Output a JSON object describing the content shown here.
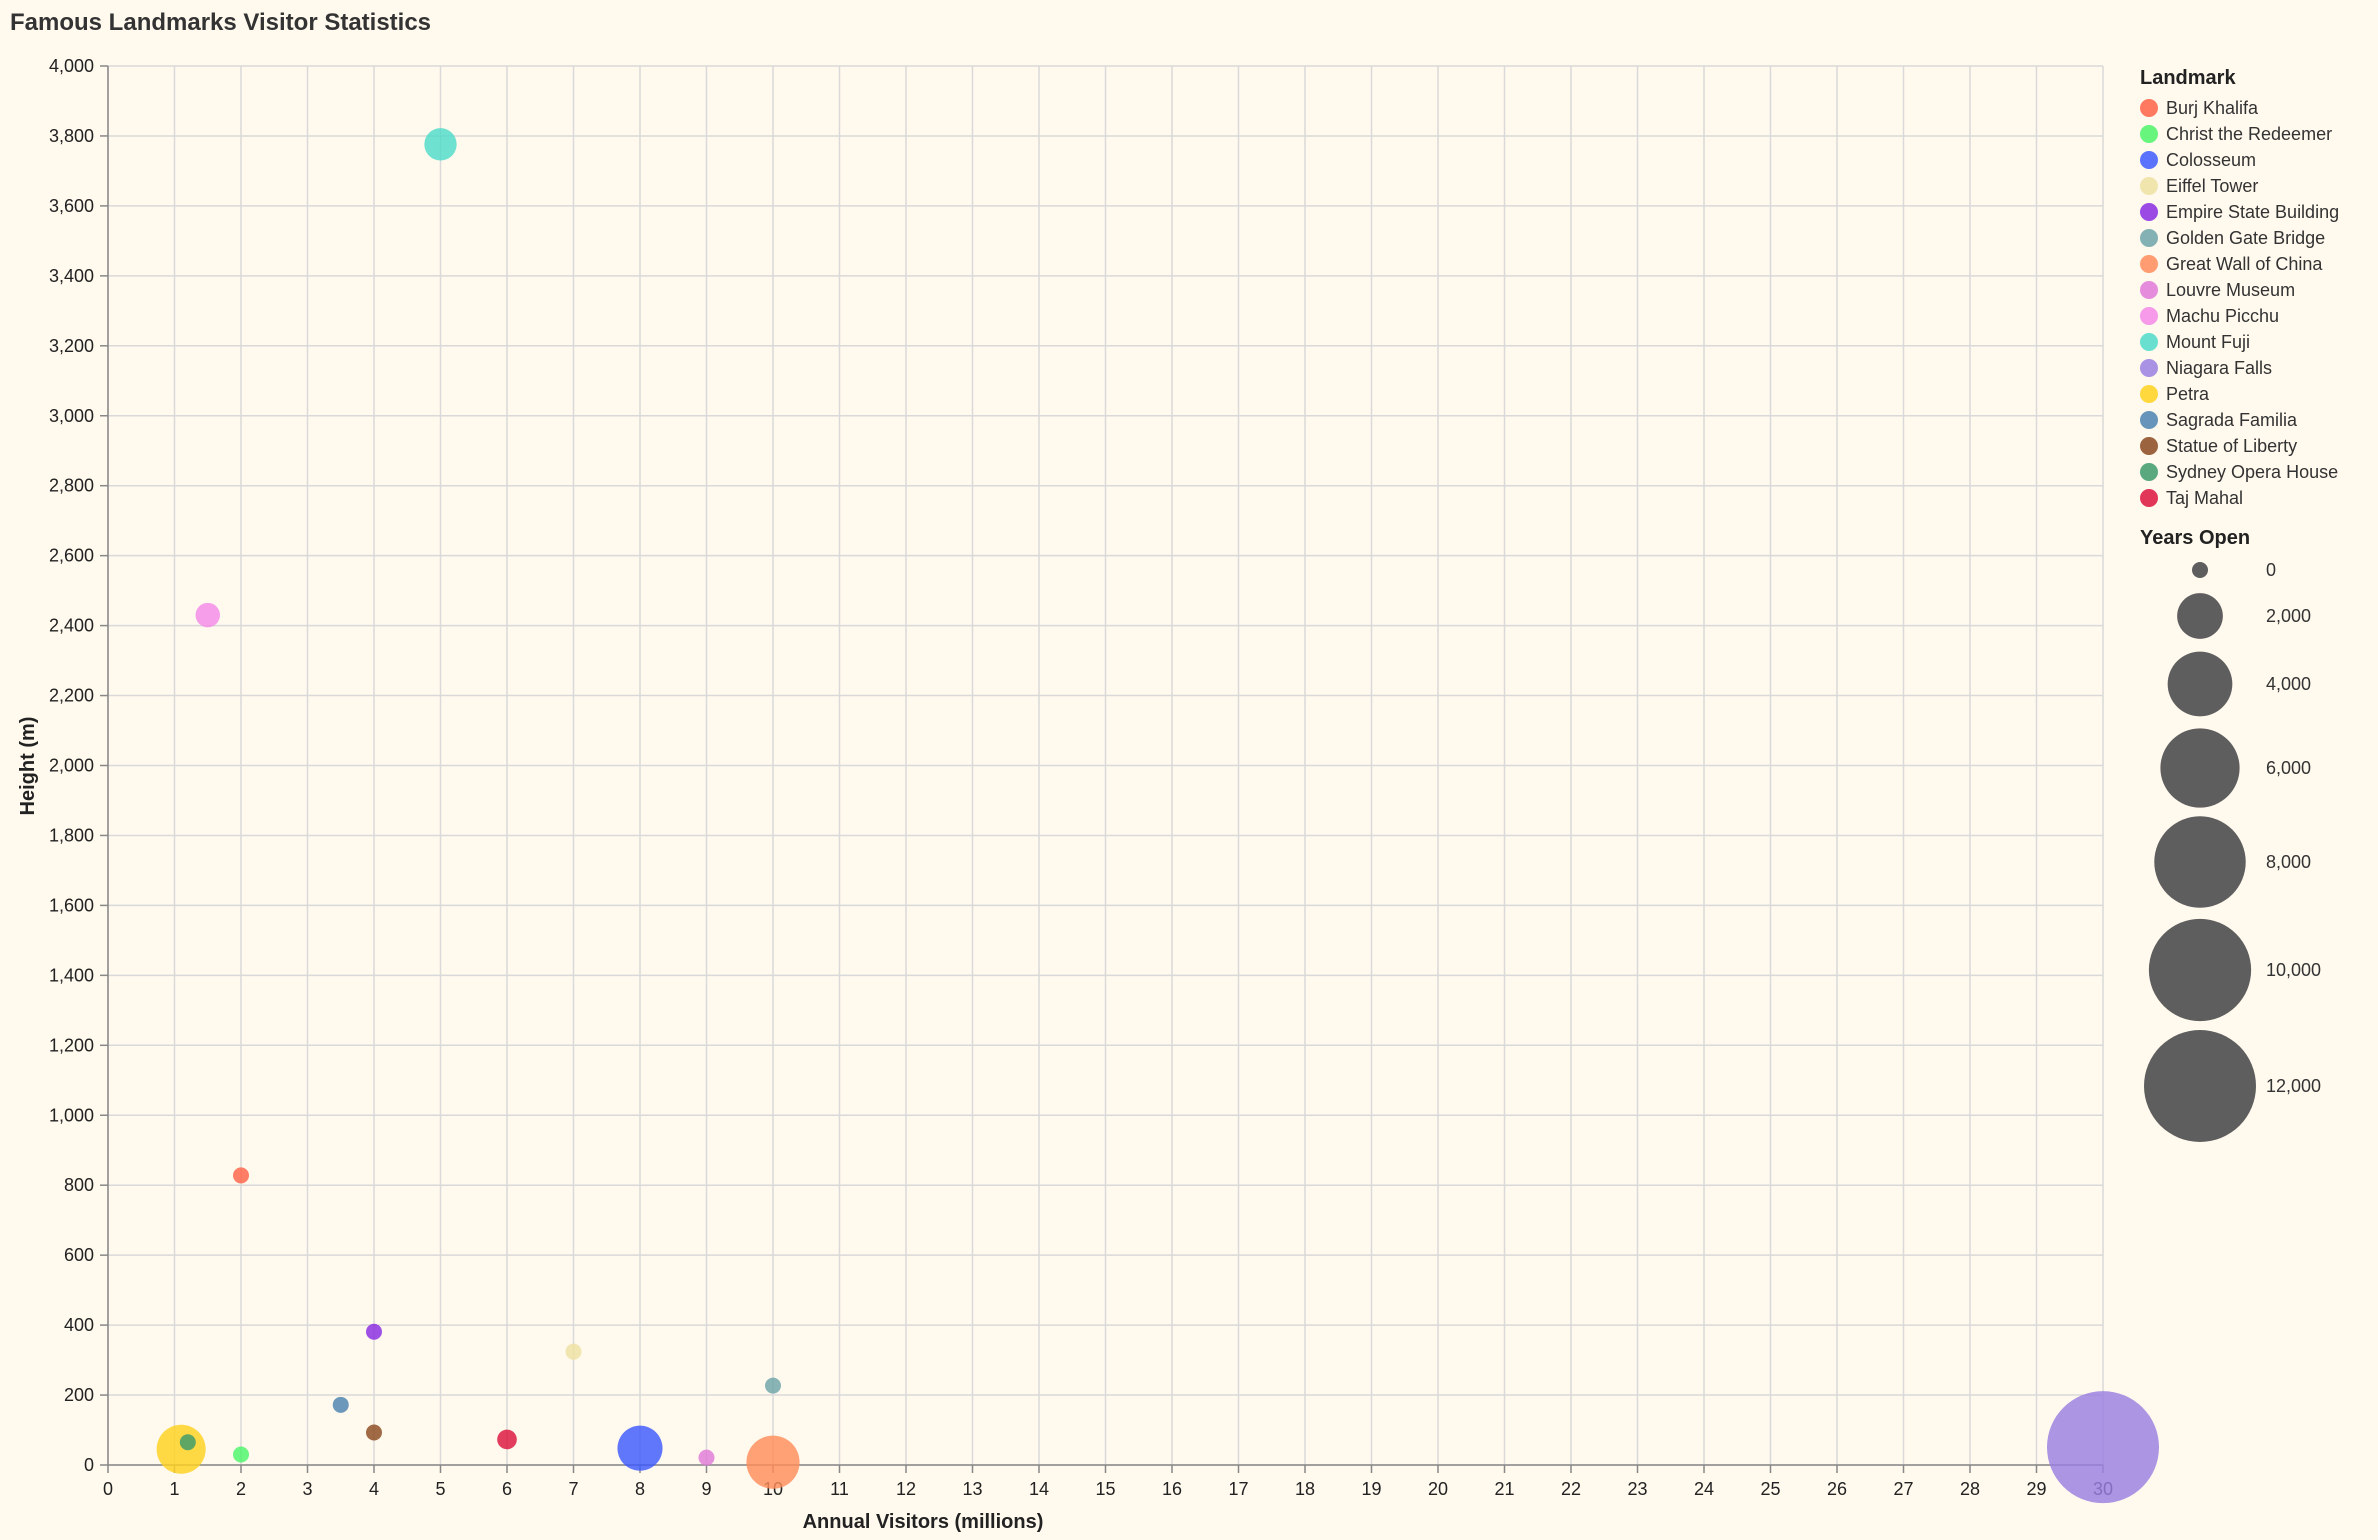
{
  "chart_data": {
    "type": "scatter",
    "title": "Famous Landmarks Visitor Statistics",
    "xlabel": "Annual Visitors (millions)",
    "ylabel": "Height (m)",
    "xlim": [
      0,
      30
    ],
    "ylim": [
      0,
      4000
    ],
    "x_ticks": [
      0,
      1,
      2,
      3,
      4,
      5,
      6,
      7,
      8,
      9,
      10,
      11,
      12,
      13,
      14,
      15,
      16,
      17,
      18,
      19,
      20,
      21,
      22,
      23,
      24,
      25,
      26,
      27,
      28,
      29,
      30
    ],
    "y_ticks": [
      0,
      200,
      400,
      600,
      800,
      1000,
      1200,
      1400,
      1600,
      1800,
      2000,
      2200,
      2400,
      2600,
      2800,
      3000,
      3200,
      3400,
      3600,
      3800,
      4000
    ],
    "grid": true,
    "color_legend": {
      "title": "Landmark",
      "placement": "right",
      "entries": [
        {
          "name": "Burj Khalifa",
          "color": "#ff6347"
        },
        {
          "name": "Christ the Redeemer",
          "color": "#4cf56a"
        },
        {
          "name": "Colosseum",
          "color": "#3d5afe"
        },
        {
          "name": "Eiffel Tower",
          "color": "#efe2a2"
        },
        {
          "name": "Empire State Building",
          "color": "#8a2be2"
        },
        {
          "name": "Golden Gate Bridge",
          "color": "#6fa5a8"
        },
        {
          "name": "Great Wall of China",
          "color": "#ff8c5a"
        },
        {
          "name": "Louvre Museum",
          "color": "#e07ad8"
        },
        {
          "name": "Machu Picchu",
          "color": "#f48ae8"
        },
        {
          "name": "Mount Fuji",
          "color": "#4fdcc9"
        },
        {
          "name": "Niagara Falls",
          "color": "#9a7fe0"
        },
        {
          "name": "Petra",
          "color": "#ffd21f"
        },
        {
          "name": "Sagrada Familia",
          "color": "#4b82b0"
        },
        {
          "name": "Statue of Liberty",
          "color": "#8b4a1f"
        },
        {
          "name": "Sydney Opera House",
          "color": "#3c9a6a"
        },
        {
          "name": "Taj Mahal",
          "color": "#dc143c"
        }
      ]
    },
    "size_legend": {
      "title": "Years Open",
      "values": [
        0,
        2000,
        4000,
        6000,
        8000,
        10000,
        12000
      ],
      "labels": [
        "0",
        "2,000",
        "4,000",
        "6,000",
        "8,000",
        "10,000",
        "12,000"
      ],
      "color": "#555555"
    },
    "points": [
      {
        "name": "Burj Khalifa",
        "x": 2,
        "y": 828,
        "years": 12
      },
      {
        "name": "Christ the Redeemer",
        "x": 2,
        "y": 30,
        "years": 91
      },
      {
        "name": "Colosseum",
        "x": 8,
        "y": 48,
        "years": 1942
      },
      {
        "name": "Eiffel Tower",
        "x": 7,
        "y": 324,
        "years": 133
      },
      {
        "name": "Empire State Building",
        "x": 4,
        "y": 381,
        "years": 91
      },
      {
        "name": "Golden Gate Bridge",
        "x": 10,
        "y": 227,
        "years": 85
      },
      {
        "name": "Great Wall of China",
        "x": 10,
        "y": 8,
        "years": 2700
      },
      {
        "name": "Louvre Museum",
        "x": 9,
        "y": 21,
        "years": 229
      },
      {
        "name": "Machu Picchu",
        "x": 1.5,
        "y": 2430,
        "years": 572
      },
      {
        "name": "Mount Fuji",
        "x": 5,
        "y": 3776,
        "years": 1000
      },
      {
        "name": "Niagara Falls",
        "x": 30,
        "y": 51,
        "years": 12000
      },
      {
        "name": "Petra",
        "x": 1.1,
        "y": 45,
        "years": 2300
      },
      {
        "name": "Sagrada Familia",
        "x": 3.5,
        "y": 172,
        "years": 140
      },
      {
        "name": "Statue of Liberty",
        "x": 4,
        "y": 93,
        "years": 136
      },
      {
        "name": "Sydney Opera House",
        "x": 1.2,
        "y": 65,
        "years": 50
      },
      {
        "name": "Taj Mahal",
        "x": 6,
        "y": 73,
        "years": 370
      }
    ]
  }
}
